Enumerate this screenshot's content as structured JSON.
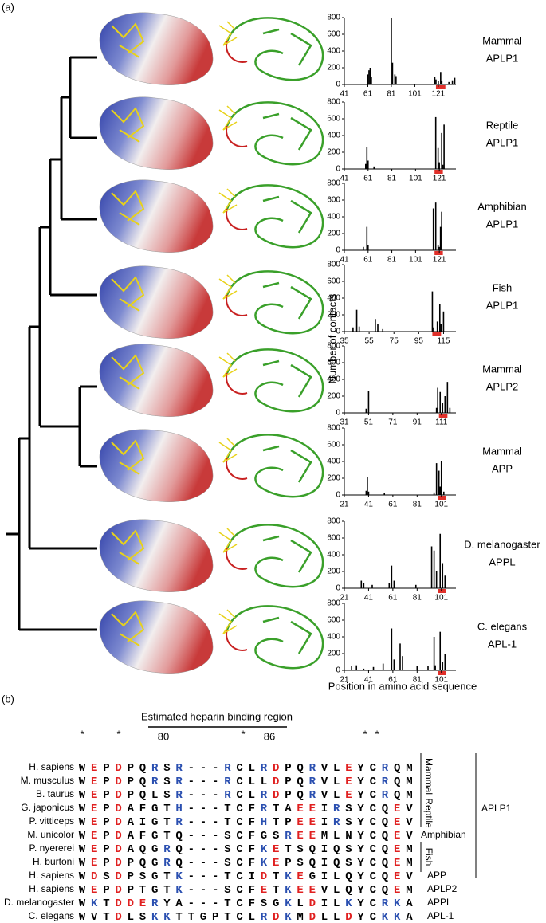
{
  "figure": {
    "panel_a": "(a)",
    "panel_b": "(b)",
    "y_axis_label": "Number of contacts",
    "x_axis_label": "Position in amino acid sequence"
  },
  "chart_data": [
    {
      "type": "bar",
      "title_lines": [
        "Mammal",
        "APLP1"
      ],
      "x": [
        61,
        62,
        63,
        64,
        81,
        82,
        84,
        85,
        118,
        119,
        121,
        123,
        124,
        130,
        133,
        135
      ],
      "values": [
        120,
        170,
        200,
        90,
        800,
        260,
        120,
        100,
        90,
        60,
        40,
        150,
        40,
        30,
        50,
        80
      ],
      "xlim": [
        41,
        136
      ],
      "xticks": [
        41,
        61,
        81,
        101,
        121
      ],
      "ylim": [
        0,
        800
      ],
      "yticks": [
        0,
        200,
        400,
        600,
        800
      ],
      "color": "#000000",
      "highlight": [
        119,
        127
      ],
      "highlight_color": "#e0302a"
    },
    {
      "type": "bar",
      "title_lines": [
        "Reptile",
        "APLP1"
      ],
      "x": [
        59,
        60,
        61,
        66,
        118,
        120,
        121,
        123,
        124,
        125
      ],
      "values": [
        60,
        260,
        100,
        30,
        620,
        250,
        80,
        430,
        50,
        530
      ],
      "xlim": [
        41,
        135
      ],
      "xticks": [
        41,
        61,
        81,
        101,
        121
      ],
      "ylim": [
        0,
        800
      ],
      "yticks": [
        0,
        200,
        400,
        600,
        800
      ],
      "color": "#000000",
      "highlight": [
        117,
        124
      ],
      "highlight_color": "#e0302a"
    },
    {
      "type": "bar",
      "title_lines": [
        "Amphibian",
        "APLP1"
      ],
      "x": [
        57,
        60,
        61,
        116,
        118,
        120,
        121,
        122,
        123
      ],
      "values": [
        40,
        280,
        60,
        500,
        570,
        60,
        40,
        280,
        460
      ],
      "xlim": [
        41,
        135
      ],
      "xticks": [
        41,
        61,
        81,
        101,
        121
      ],
      "ylim": [
        0,
        800
      ],
      "yticks": [
        0,
        200,
        400,
        600,
        800
      ],
      "color": "#000000",
      "highlight": [
        117,
        124
      ],
      "highlight_color": "#e0302a"
    },
    {
      "type": "bar",
      "title_lines": [
        "Fish",
        "APLP1"
      ],
      "x": [
        42,
        45,
        47,
        60,
        62,
        66,
        106,
        107,
        110,
        112,
        113,
        115
      ],
      "values": [
        50,
        260,
        60,
        150,
        90,
        30,
        480,
        50,
        120,
        330,
        90,
        240
      ],
      "xlim": [
        35,
        125
      ],
      "xticks": [
        35,
        55,
        75,
        95,
        115
      ],
      "ylim": [
        0,
        800
      ],
      "yticks": [
        0,
        200,
        400,
        600,
        800
      ],
      "color": "#000000",
      "highlight": [
        106,
        113
      ],
      "highlight_color": "#e0302a"
    },
    {
      "type": "bar",
      "title_lines": [
        "Mammal",
        "APLP2"
      ],
      "x": [
        49,
        51,
        107,
        108,
        110,
        112,
        114,
        116,
        118
      ],
      "values": [
        50,
        260,
        60,
        300,
        250,
        120,
        200,
        370,
        60
      ],
      "xlim": [
        31,
        123
      ],
      "xticks": [
        31,
        51,
        71,
        91,
        111
      ],
      "ylim": [
        0,
        800
      ],
      "yticks": [
        0,
        200,
        400,
        600,
        800
      ],
      "color": "#000000",
      "highlight": [
        109,
        116
      ],
      "highlight_color": "#e0302a"
    },
    {
      "type": "bar",
      "title_lines": [
        "Mammal",
        "APP"
      ],
      "x": [
        39,
        40,
        41,
        54,
        95,
        97,
        99,
        100,
        101,
        103
      ],
      "values": [
        50,
        210,
        40,
        20,
        30,
        380,
        290,
        100,
        400,
        40
      ],
      "xlim": [
        21,
        113
      ],
      "xticks": [
        21,
        41,
        61,
        81,
        101
      ],
      "ylim": [
        0,
        800
      ],
      "yticks": [
        0,
        200,
        400,
        600,
        800
      ],
      "color": "#000000",
      "highlight": [
        98,
        105
      ],
      "highlight_color": "#e0302a"
    },
    {
      "type": "bar",
      "title_lines": [
        "D. melanogaster",
        "APPL"
      ],
      "x": [
        35,
        37,
        44,
        58,
        60,
        62,
        80,
        93,
        95,
        97,
        100,
        102,
        104
      ],
      "values": [
        90,
        60,
        40,
        60,
        270,
        90,
        40,
        500,
        450,
        200,
        650,
        300,
        150
      ],
      "xlim": [
        21,
        113
      ],
      "xticks": [
        21,
        41,
        61,
        81,
        101
      ],
      "ylim": [
        0,
        800
      ],
      "yticks": [
        0,
        200,
        400,
        600,
        800
      ],
      "color": "#000000",
      "highlight": [
        98,
        105
      ],
      "highlight_color": "#e0302a"
    },
    {
      "type": "bar",
      "title_lines": [
        "C. elegans",
        "APL-1"
      ],
      "x": [
        27,
        31,
        37,
        45,
        53,
        60,
        62,
        67,
        69,
        81,
        90,
        95,
        96,
        100,
        102,
        104
      ],
      "values": [
        50,
        60,
        20,
        40,
        80,
        500,
        130,
        320,
        170,
        50,
        50,
        400,
        60,
        460,
        100,
        200
      ],
      "xlim": [
        21,
        113
      ],
      "xticks": [
        21,
        41,
        61,
        81,
        101
      ],
      "ylim": [
        0,
        800
      ],
      "yticks": [
        0,
        200,
        400,
        600,
        800
      ],
      "color": "#000000",
      "highlight": [
        98,
        105
      ],
      "highlight_color": "#e0302a"
    }
  ],
  "alignment": {
    "heading": "Estimated heparin binding region",
    "position_labels": [
      "80",
      "86"
    ],
    "markers": [
      "*",
      "*",
      "*",
      "*",
      "*"
    ],
    "groups": {
      "mammal": "Mammal",
      "reptile": "Reptile",
      "amphibian": "Amphibian",
      "fish": "Fish",
      "aplp1": "APLP1"
    },
    "residue_colors": {
      "r": "#e02020",
      "b": "#2a4fb0",
      "k": "#000000"
    },
    "rows": [
      {
        "species": "H. sapiens",
        "sequence": "WEPDPQRSR---RCLRDPQRVLEYCRQM",
        "colors": "krkrkkbkb---bkkbrkkbkkrkkbkk"
      },
      {
        "species": "M. musculus",
        "sequence": "WEPDPQRSR---RCLLDPQRVLEYCRQM",
        "colors": "krkrkkbkb---bkkkrkkbkkrkkbkk"
      },
      {
        "species": "B. taurus",
        "sequence": "WEPDPQLSR---RCLRDPQRVLEYCRQM",
        "colors": "krkrkkkkb---bkkbrkkbkkrkkbkk"
      },
      {
        "species": "G. japonicus",
        "sequence": "WEPDAFGTH---TCFRTAEEIRSYCQEV",
        "colors": "krkrkkkkb---kkkbkkrrkbkkkkrk"
      },
      {
        "species": "P. vitticeps",
        "sequence": "WEPDAIGTR---TCFHTPEEIRSYCQEV",
        "colors": "krkrkkkkb---kkkbkkrrkbkkkkrk"
      },
      {
        "species": "M. unicolor",
        "sequence": "WEPDAFGTQ---SCFGSREEMLNYCQEV",
        "colors": "krkrkkkkk---kkkkkbrrkkkkkkrk"
      },
      {
        "species": "P. nyererei",
        "sequence": "WEPDAQGRQ---SCFKETSQIQSYCQEM",
        "colors": "krkrkkkbk---kkkbrkkkkkkkkkrk"
      },
      {
        "species": "H. burtoni",
        "sequence": "WEPDPQGRQ---SCFKEPSQIQSYCQEM",
        "colors": "krkrkkkbk---kkkbrkkkkkkkkkrk"
      },
      {
        "species": "H. sapiens",
        "sequence": "WDSDPSGTK---TCIDTKEGILQYCQEV",
        "colors": "krkrkkkkb---kkkrkbrkkkkkkkrk",
        "protein": "APP"
      },
      {
        "species": "H. sapiens",
        "sequence": "WEPDPTGTK---SCFETKEEVLQYCQEM",
        "colors": "krkrkkkkb---kkkrkbrrkkkkkkrk",
        "protein": "APLP2"
      },
      {
        "species": "D. melanogaster",
        "sequence": "WKTDDERYA---TCFSGKLDILKYCRKA",
        "colors": "kbkrrrbkk---kkkkkbkrkkbkkbbk",
        "protein": "APPL"
      },
      {
        "species": "C. elegans",
        "sequence": "WVTDLSKKTTGPTCLRDKMDLLDYCKKA",
        "colors": "kkkrkkbbkkkkkkkbrbkrkkrkkbbk",
        "protein": "APL-1"
      }
    ]
  }
}
